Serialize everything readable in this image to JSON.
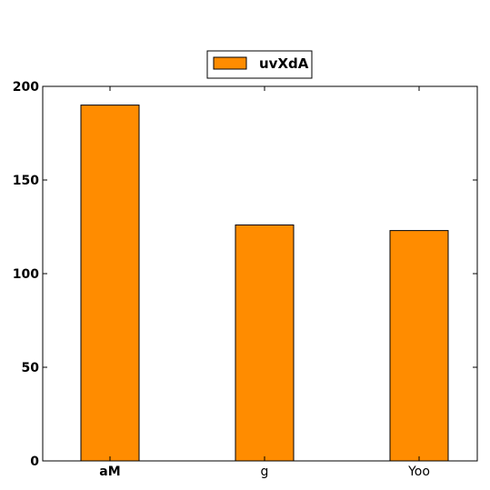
{
  "chart_data": {
    "type": "bar",
    "categories": [
      "aM",
      "g",
      "Yoo"
    ],
    "series": [
      {
        "name": "uvXdA",
        "values": [
          190,
          126,
          123
        ],
        "color": "#ff8c00"
      }
    ],
    "title": "",
    "xlabel": "",
    "ylabel": "",
    "ylim": [
      0,
      200
    ],
    "yticks": [
      0,
      50,
      100,
      150,
      200
    ],
    "bold_categories": [
      "aM"
    ],
    "grid": false,
    "legend_position": "top-center, outside plot"
  }
}
